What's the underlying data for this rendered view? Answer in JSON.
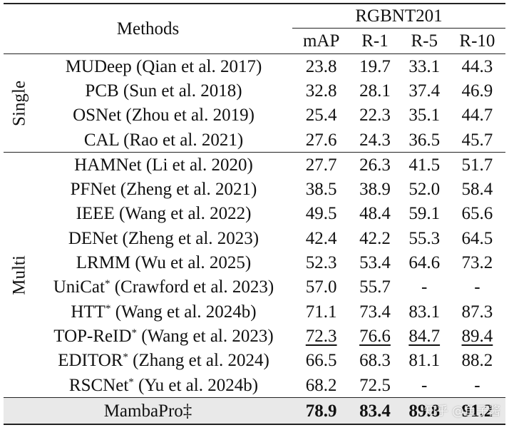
{
  "header": {
    "methods_label": "Methods",
    "dataset": "RGBNT201",
    "metrics": [
      "mAP",
      "R-1",
      "R-5",
      "R-10"
    ]
  },
  "groups": {
    "single_label": "Single",
    "multi_label": "Multi"
  },
  "rows": [
    {
      "method": "MUDeep (Qian et al. 2017)",
      "star": "",
      "map": "23.8",
      "r1": "19.7",
      "r5": "33.1",
      "r10": "44.3"
    },
    {
      "method": "PCB (Sun et al. 2018)",
      "star": "",
      "map": "32.8",
      "r1": "28.1",
      "r5": "37.4",
      "r10": "46.9"
    },
    {
      "method": "OSNet (Zhou et al. 2019)",
      "star": "",
      "map": "25.4",
      "r1": "22.3",
      "r5": "35.1",
      "r10": "44.7"
    },
    {
      "method": "CAL (Rao et al. 2021)",
      "star": "",
      "map": "27.6",
      "r1": "24.3",
      "r5": "36.5",
      "r10": "45.7"
    },
    {
      "method": "HAMNet (Li et al. 2020)",
      "star": "",
      "map": "27.7",
      "r1": "26.3",
      "r5": "41.5",
      "r10": "51.7"
    },
    {
      "method": "PFNet (Zheng et al. 2021)",
      "star": "",
      "map": "38.5",
      "r1": "38.9",
      "r5": "52.0",
      "r10": "58.4"
    },
    {
      "method": "IEEE (Wang et al. 2022)",
      "star": "",
      "map": "49.5",
      "r1": "48.4",
      "r5": "59.1",
      "r10": "65.6"
    },
    {
      "method": "DENet (Zheng et al. 2023)",
      "star": "",
      "map": "42.4",
      "r1": "42.2",
      "r5": "55.3",
      "r10": "64.5"
    },
    {
      "method": "LRMM (Wu et al. 2025)",
      "star": "",
      "map": "52.3",
      "r1": "53.4",
      "r5": "64.6",
      "r10": "73.2"
    },
    {
      "method_a": "UniCat",
      "method_b": " (Crawford et al. 2023)",
      "star": "*",
      "map": "57.0",
      "r1": "55.7",
      "r5": "-",
      "r10": "-"
    },
    {
      "method_a": "HTT",
      "method_b": " (Wang et al. 2024b)",
      "star": "*",
      "map": "71.1",
      "r1": "73.4",
      "r5": "83.1",
      "r10": "87.3"
    },
    {
      "method_a": "TOP-ReID",
      "method_b": " (Wang et al. 2023)",
      "star": "*",
      "map": "72.3",
      "r1": "76.6",
      "r5": "84.7",
      "r10": "89.4"
    },
    {
      "method_a": "EDITOR",
      "method_b": " (Zhang et al. 2024)",
      "star": "*",
      "map": "66.5",
      "r1": "68.3",
      "r5": "81.1",
      "r10": "88.2"
    },
    {
      "method_a": "RSCNet",
      "method_b": " (Yu et al. 2024b)",
      "star": "*",
      "map": "68.2",
      "r1": "72.5",
      "r5": "-",
      "r10": "-"
    }
  ],
  "ours": {
    "method": "MambaPro‡",
    "map": "78.9",
    "r1": "83.4",
    "r5": "89.8",
    "r10": "91.2"
  },
  "watermark": "知乎 @鱼子酱"
}
